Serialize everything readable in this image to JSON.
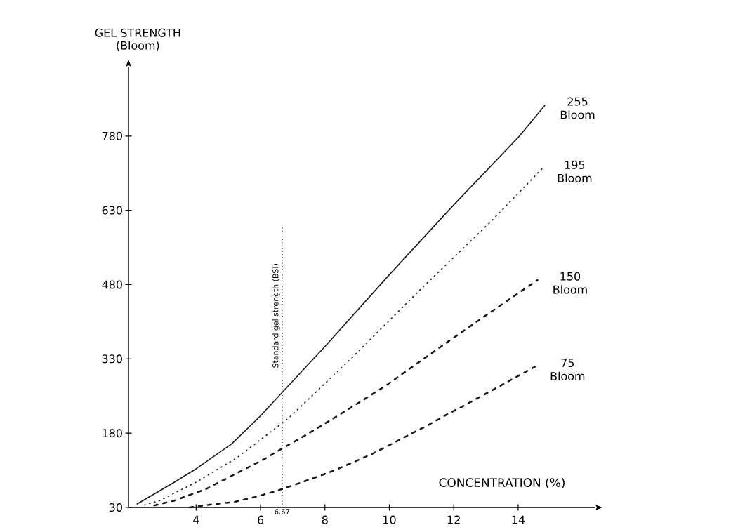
{
  "chart_data": {
    "type": "line",
    "xlabel": "CONCENTRATION (%)",
    "ylabel": "GEL STRENGTH (Bloom)",
    "xlim": [
      1.9,
      16.4
    ],
    "ylim": [
      30,
      920
    ],
    "xticks": [
      4,
      6,
      8,
      10,
      12,
      14
    ],
    "annotations": [
      {
        "text": "6.67",
        "x": 6.67,
        "y": 30
      }
    ],
    "yticks": [
      30,
      180,
      330,
      480,
      630,
      780
    ],
    "grid": false,
    "series": [
      {
        "name": "255 Bloom",
        "color": "#1a1a1a",
        "line_style": "solid",
        "x": [
          2.17,
          3.3,
          4,
          5.1,
          6,
          6.67,
          8,
          10,
          12,
          14,
          14.83
        ],
        "values": [
          37,
          80,
          108,
          158,
          215,
          262,
          355,
          500,
          641,
          777,
          842
        ]
      },
      {
        "name": "195 Bloom",
        "color": "#1a1a1a",
        "line_style": "dotted",
        "x": [
          2.4,
          2.87,
          4,
          5.26,
          6.85,
          8.85,
          10.98,
          13.15,
          14.74
        ],
        "values": [
          35,
          44,
          81,
          130,
          209,
          333,
          471,
          607,
          714
        ]
      },
      {
        "name": "150 Bloom",
        "color": "#1a1a1a",
        "line_style": "dashed",
        "x": [
          2.7,
          3.33,
          4.3,
          5.2,
          6.13,
          6.54,
          7.35,
          8.22,
          9.09,
          9.89,
          11.04,
          11.85,
          13.0,
          14.6
        ],
        "values": [
          34,
          44,
          67,
          97,
          128,
          144,
          174,
          208,
          243,
          276,
          329,
          366,
          418,
          489
        ]
      },
      {
        "name": "75 Bloom",
        "color": "#1a1a1a",
        "line_style": "dashed",
        "x": [
          3.8,
          4.46,
          5.17,
          5.83,
          6.48,
          7.07,
          7.72,
          8.3,
          8.91,
          9.46,
          10.07,
          10.65,
          11.2,
          11.74,
          12.33,
          14.52
        ],
        "values": [
          30,
          36,
          41,
          51,
          63,
          76,
          91,
          105,
          122,
          138,
          158,
          178,
          196,
          216,
          236,
          314
        ]
      }
    ],
    "ref_lines": [
      {
        "axis": "x",
        "value": 6.67,
        "label": "Standard gel strength (BSI)",
        "line_style": "dotted"
      }
    ]
  }
}
